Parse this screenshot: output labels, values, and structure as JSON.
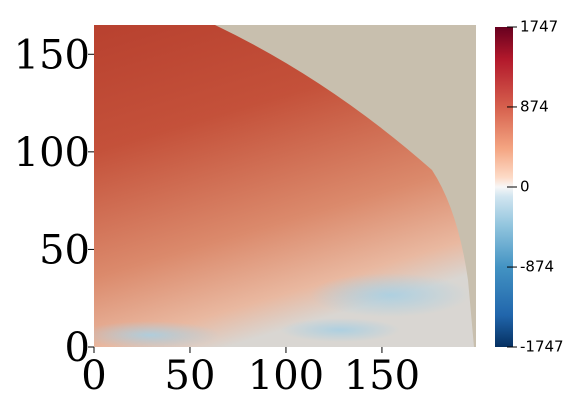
{
  "chart_data": {
    "type": "heatmap",
    "xlim": [
      0,
      199
    ],
    "xticks": [
      0,
      50,
      100,
      150
    ],
    "ylim": [
      0,
      165
    ],
    "yticks": [
      0,
      50,
      100,
      150
    ],
    "colorbar": {
      "lim": [
        -1747,
        1747
      ],
      "ticks": [
        1747,
        874,
        0,
        -874,
        -1747
      ]
    }
  }
}
